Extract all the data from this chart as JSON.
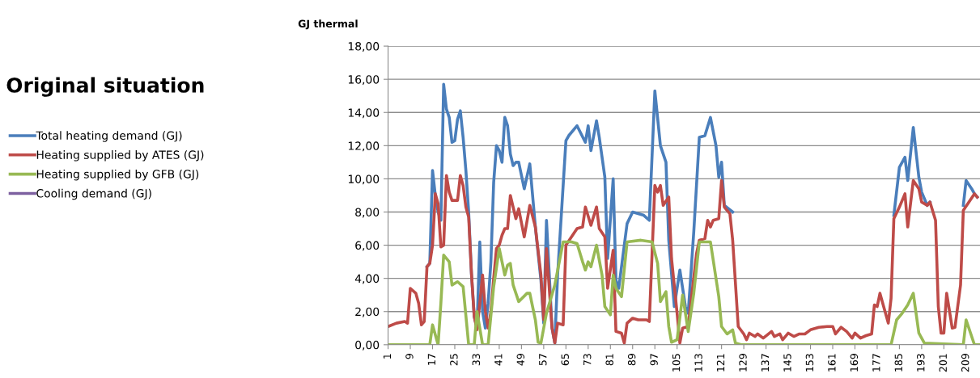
{
  "chart_data": {
    "type": "line",
    "title": "Original situation",
    "ylabel": "GJ thermal",
    "xlim": [
      1,
      214
    ],
    "xticks": [
      1,
      9,
      17,
      25,
      33,
      41,
      49,
      57,
      65,
      73,
      81,
      89,
      97,
      105,
      113,
      121,
      129,
      137,
      145,
      153,
      161,
      169,
      177,
      185,
      193,
      201,
      209
    ],
    "ylim": [
      0,
      18
    ],
    "yticks": [
      {
        "value": 0,
        "label": "0,00"
      },
      {
        "value": 2,
        "label": "2,00"
      },
      {
        "value": 4,
        "label": "4,00"
      },
      {
        "value": 6,
        "label": "6,00"
      },
      {
        "value": 8,
        "label": "8,00"
      },
      {
        "value": 10,
        "label": "10,00"
      },
      {
        "value": 12,
        "label": "12,00"
      },
      {
        "value": 14,
        "label": "14,00"
      },
      {
        "value": 16,
        "label": "16,00"
      },
      {
        "value": 18,
        "label": "18,00"
      }
    ],
    "grid": "y",
    "legend": "left",
    "marker": "none",
    "line_style": "solid",
    "series": [
      {
        "name": "Total heating demand (GJ)",
        "color": "#4a7ebb",
        "x": [
          15,
          16,
          17,
          18,
          19,
          20,
          21,
          22,
          23,
          24,
          25,
          26,
          27,
          28,
          29,
          30,
          31,
          32,
          33,
          34,
          35,
          36,
          37,
          38,
          39,
          40,
          41,
          42,
          43,
          44,
          45,
          46,
          47,
          48,
          50,
          52,
          54,
          56,
          57,
          58,
          60,
          61,
          62,
          65,
          66,
          69,
          72,
          73,
          74,
          76,
          77,
          79,
          80,
          82,
          83,
          84,
          87,
          89,
          93,
          95,
          97,
          99,
          101,
          102,
          104,
          106,
          108,
          109,
          111,
          113,
          115,
          117,
          119,
          120,
          121,
          122,
          125,
          127,
          129,
          130,
          131,
          133,
          134,
          136,
          139,
          140,
          142,
          143,
          145,
          147,
          149,
          151,
          153,
          156,
          159,
          161,
          162,
          164,
          166,
          168,
          169,
          171,
          173,
          175,
          176,
          177,
          178,
          180,
          181,
          182,
          183,
          185,
          187,
          188,
          190,
          192,
          193,
          195,
          196,
          198,
          199,
          200,
          201,
          202,
          204,
          205,
          207,
          208,
          209,
          211,
          212,
          213
        ],
        "values": [
          4.7,
          4.9,
          10.5,
          9.0,
          8.0,
          7.5,
          15.7,
          14.2,
          13.7,
          12.2,
          12.3,
          13.6,
          14.1,
          12.5,
          10.5,
          8.0,
          4.3,
          1.7,
          1.0,
          6.2,
          2.0,
          1.0,
          2.5,
          5.0,
          9.8,
          12.0,
          11.7,
          11.0,
          13.7,
          13.2,
          11.5,
          10.8,
          11.0,
          11.0,
          9.4,
          10.9,
          7.1,
          3.9,
          1.3,
          7.5,
          1.0,
          0.1,
          4.2,
          12.3,
          12.6,
          13.2,
          12.2,
          13.2,
          11.7,
          13.5,
          12.5,
          10.1,
          5.2,
          10.0,
          3.9,
          3.4,
          7.3,
          8.0,
          7.8,
          7.5,
          15.3,
          12.0,
          11.0,
          6.3,
          2.3,
          4.5,
          2.3,
          1.9,
          6.8,
          12.5,
          12.6,
          13.7,
          12.0,
          10.1,
          11.0,
          8.4,
          8.0,
          null,
          null,
          null,
          null,
          null,
          null,
          null,
          null,
          null,
          null,
          null,
          null,
          null,
          null,
          null,
          null,
          null,
          null,
          null,
          null,
          null,
          null,
          null,
          null,
          null,
          null,
          null,
          null,
          null,
          null,
          null,
          null,
          null,
          7.8,
          10.7,
          11.3,
          9.9,
          13.1,
          10.1,
          9.2,
          8.4,
          8.6,
          null,
          null,
          null,
          null,
          null,
          null,
          null,
          null,
          8.4,
          9.9,
          9.4,
          9.1,
          8.9
        ]
      },
      {
        "name": "Heating supplied by ATES (GJ)",
        "color": "#be4b48",
        "x": [
          1,
          4,
          7,
          8,
          9,
          11,
          12,
          13,
          14,
          15,
          16,
          17,
          18,
          19,
          20,
          21,
          22,
          23,
          24,
          26,
          27,
          28,
          29,
          30,
          31,
          32,
          33,
          34,
          35,
          36,
          37,
          38,
          39,
          40,
          41,
          42,
          43,
          44,
          45,
          46,
          47,
          48,
          50,
          52,
          54,
          56,
          57,
          58,
          60,
          61,
          62,
          64,
          65,
          67,
          69,
          71,
          72,
          74,
          76,
          77,
          79,
          80,
          82,
          83,
          85,
          86,
          87,
          89,
          91,
          94,
          95,
          97,
          98,
          99,
          100,
          102,
          103,
          105,
          106,
          107,
          109,
          110,
          112,
          113,
          115,
          116,
          117,
          118,
          120,
          121,
          122,
          124,
          125,
          127,
          129,
          130,
          131,
          133,
          134,
          136,
          139,
          140,
          142,
          143,
          145,
          147,
          149,
          151,
          153,
          156,
          159,
          161,
          162,
          164,
          166,
          168,
          169,
          171,
          173,
          175,
          176,
          177,
          178,
          180,
          181,
          182,
          183,
          185,
          187,
          188,
          190,
          192,
          193,
          195,
          196,
          198,
          199,
          200,
          201,
          202,
          204,
          205,
          207,
          208,
          210,
          212,
          213
        ],
        "values": [
          1.1,
          1.3,
          1.4,
          1.3,
          3.4,
          3.1,
          2.5,
          1.2,
          1.4,
          4.7,
          4.9,
          6.0,
          9.1,
          8.5,
          5.9,
          6.0,
          10.2,
          9.2,
          8.7,
          8.7,
          10.2,
          9.6,
          8.3,
          7.7,
          4.3,
          1.7,
          0.9,
          2.5,
          4.2,
          2.0,
          1.0,
          2.0,
          4.0,
          5.8,
          6.0,
          6.6,
          7.0,
          7.0,
          9.0,
          8.3,
          7.6,
          8.2,
          6.5,
          8.4,
          7.1,
          4.2,
          1.5,
          5.8,
          1.0,
          0.1,
          1.3,
          1.2,
          6.0,
          6.5,
          7.0,
          7.1,
          8.3,
          7.2,
          8.3,
          7.0,
          6.5,
          3.4,
          5.7,
          0.8,
          0.7,
          0.1,
          1.3,
          1.6,
          1.5,
          1.5,
          1.4,
          9.6,
          9.2,
          9.6,
          8.4,
          8.9,
          5.2,
          1.9,
          0.1,
          1.0,
          1.1,
          2.6,
          5.5,
          6.3,
          6.4,
          7.5,
          7.1,
          7.5,
          7.6,
          9.9,
          8.3,
          7.9,
          6.3,
          1.1,
          0.65,
          0.3,
          0.7,
          0.5,
          0.65,
          0.4,
          0.8,
          0.5,
          0.65,
          0.3,
          0.7,
          0.5,
          0.65,
          0.65,
          0.9,
          1.05,
          1.1,
          1.1,
          0.65,
          1.05,
          0.8,
          0.4,
          0.7,
          0.4,
          0.55,
          0.65,
          2.4,
          2.3,
          3.1,
          1.9,
          1.3,
          2.8,
          7.6,
          8.3,
          9.1,
          7.1,
          9.9,
          9.4,
          8.6,
          8.4,
          8.6,
          7.5,
          2.3,
          0.7,
          0.7,
          3.1,
          1.0,
          1.05,
          3.6,
          8.1,
          8.6,
          9.1,
          8.9
        ]
      },
      {
        "name": "Heating supplied by GFB (GJ)",
        "color": "#98b954",
        "x": [
          1,
          16,
          17,
          19,
          20,
          21,
          23,
          24,
          26,
          28,
          30,
          32,
          33,
          35,
          37,
          39,
          41,
          42,
          43,
          44,
          45,
          46,
          48,
          51,
          52,
          54,
          55,
          56,
          58,
          61,
          64,
          67,
          69,
          71,
          72,
          73,
          74,
          76,
          78,
          79,
          81,
          82,
          83,
          85,
          87,
          92,
          96,
          98,
          99,
          101,
          102,
          103,
          105,
          107,
          109,
          111,
          113,
          117,
          120,
          121,
          123,
          125,
          126,
          128,
          182,
          184,
          186,
          188,
          190,
          192,
          194,
          208,
          209,
          212,
          214
        ],
        "values": [
          0,
          0,
          1.2,
          0,
          2.5,
          5.4,
          5.0,
          3.6,
          3.8,
          3.5,
          0,
          0,
          2.0,
          0,
          0,
          3.5,
          5.8,
          5.0,
          4.2,
          4.8,
          4.9,
          3.6,
          2.6,
          3.1,
          3.1,
          1.5,
          0.15,
          0.1,
          1.9,
          3.6,
          6.2,
          6.2,
          6.1,
          5.0,
          4.5,
          5.0,
          4.7,
          6.0,
          4.2,
          2.3,
          1.8,
          4.2,
          3.4,
          2.9,
          6.2,
          6.3,
          6.2,
          4.9,
          2.6,
          3.2,
          1.1,
          0.15,
          0.3,
          3.0,
          0.8,
          3.1,
          6.2,
          6.2,
          2.9,
          1.1,
          0.65,
          0.9,
          0.1,
          0,
          0,
          1.5,
          1.9,
          2.4,
          3.1,
          0.7,
          0.1,
          0,
          1.5,
          0,
          0
        ]
      },
      {
        "name": "Cooling demand (GJ)",
        "color": "#7d60a0"
      }
    ]
  }
}
